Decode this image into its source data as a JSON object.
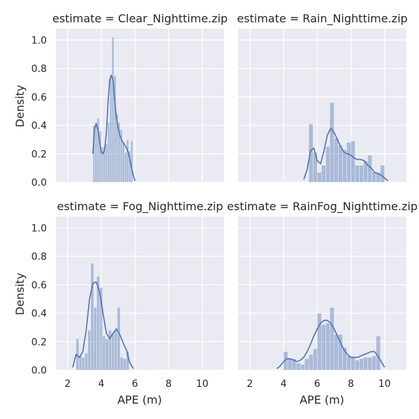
{
  "figure": {
    "x_label": "APE (m)",
    "y_label": "Density"
  },
  "colors": {
    "background": "#eaeaf2",
    "grid": "#ffffff",
    "bar": "#4c72b0",
    "kde": "#4c72b0"
  },
  "chart_data": [
    {
      "type": "histogram",
      "title": "estimate = Clear_Nighttime.zip",
      "xlabel": "",
      "ylabel": "Density",
      "xlim": [
        1.3,
        11.3
      ],
      "ylim": [
        0,
        1.08
      ],
      "xticks": [
        2,
        4,
        6,
        8,
        10
      ],
      "yticks": [
        0.0,
        0.2,
        0.4,
        0.6,
        0.8,
        1.0
      ],
      "bin_width": 0.125,
      "bins": [
        [
          3.5,
          0.4
        ],
        [
          3.625,
          0.42
        ],
        [
          3.75,
          0.45
        ],
        [
          3.875,
          0.36
        ],
        [
          4.0,
          0.25
        ],
        [
          4.125,
          0.25
        ],
        [
          4.25,
          0.27
        ],
        [
          4.375,
          0.42
        ],
        [
          4.5,
          0.75
        ],
        [
          4.625,
          1.02
        ],
        [
          4.75,
          0.75
        ],
        [
          4.875,
          0.48
        ],
        [
          5.0,
          0.42
        ],
        [
          5.125,
          0.37
        ],
        [
          5.25,
          0.28
        ],
        [
          5.375,
          0.21
        ],
        [
          5.5,
          0.3
        ],
        [
          5.625,
          0.22
        ],
        [
          5.75,
          0.29
        ]
      ],
      "kde": [
        [
          3.5,
          0.2
        ],
        [
          3.6,
          0.38
        ],
        [
          3.7,
          0.41
        ],
        [
          3.8,
          0.37
        ],
        [
          3.9,
          0.28
        ],
        [
          4.0,
          0.21
        ],
        [
          4.1,
          0.2
        ],
        [
          4.2,
          0.23
        ],
        [
          4.3,
          0.35
        ],
        [
          4.4,
          0.56
        ],
        [
          4.5,
          0.72
        ],
        [
          4.6,
          0.75
        ],
        [
          4.7,
          0.72
        ],
        [
          4.8,
          0.57
        ],
        [
          4.9,
          0.45
        ],
        [
          5.0,
          0.38
        ],
        [
          5.1,
          0.33
        ],
        [
          5.2,
          0.3
        ],
        [
          5.3,
          0.28
        ],
        [
          5.4,
          0.26
        ],
        [
          5.5,
          0.24
        ],
        [
          5.6,
          0.21
        ],
        [
          5.7,
          0.16
        ],
        [
          5.8,
          0.1
        ],
        [
          5.9,
          0.05
        ],
        [
          6.0,
          0.01
        ]
      ]
    },
    {
      "type": "histogram",
      "title": "estimate = Rain_Nighttime.zip",
      "xlabel": "",
      "ylabel": "",
      "xlim": [
        1.3,
        11.3
      ],
      "ylim": [
        0,
        1.08
      ],
      "xticks": [
        2,
        4,
        6,
        8,
        10
      ],
      "yticks": [
        0.0,
        0.2,
        0.4,
        0.6,
        0.8,
        1.0
      ],
      "bin_width": 0.25,
      "bins": [
        [
          5.5,
          0.41
        ],
        [
          5.75,
          0.21
        ],
        [
          6.0,
          0.07
        ],
        [
          6.25,
          0.12
        ],
        [
          6.5,
          0.25
        ],
        [
          6.75,
          0.56
        ],
        [
          7.0,
          0.31
        ],
        [
          7.25,
          0.26
        ],
        [
          7.5,
          0.23
        ],
        [
          7.75,
          0.28
        ],
        [
          8.0,
          0.29
        ],
        [
          8.25,
          0.12
        ],
        [
          8.5,
          0.12
        ],
        [
          8.75,
          0.15
        ],
        [
          9.0,
          0.19
        ],
        [
          9.25,
          0.07
        ],
        [
          9.5,
          0.07
        ],
        [
          9.75,
          0.12
        ]
      ],
      "kde": [
        [
          5.2,
          0.02
        ],
        [
          5.4,
          0.09
        ],
        [
          5.6,
          0.22
        ],
        [
          5.8,
          0.24
        ],
        [
          6.0,
          0.15
        ],
        [
          6.2,
          0.13
        ],
        [
          6.4,
          0.22
        ],
        [
          6.6,
          0.33
        ],
        [
          6.8,
          0.38
        ],
        [
          7.0,
          0.35
        ],
        [
          7.2,
          0.3
        ],
        [
          7.4,
          0.25
        ],
        [
          7.6,
          0.21
        ],
        [
          7.8,
          0.2
        ],
        [
          8.0,
          0.19
        ],
        [
          8.2,
          0.17
        ],
        [
          8.4,
          0.16
        ],
        [
          8.6,
          0.16
        ],
        [
          8.8,
          0.15
        ],
        [
          9.0,
          0.12
        ],
        [
          9.2,
          0.1
        ],
        [
          9.4,
          0.07
        ],
        [
          9.6,
          0.06
        ],
        [
          9.8,
          0.05
        ],
        [
          10.0,
          0.03
        ],
        [
          10.2,
          0.01
        ]
      ]
    },
    {
      "type": "histogram",
      "title": "estimate = Fog_Nighttime.zip",
      "xlabel": "APE (m)",
      "ylabel": "Density",
      "xlim": [
        1.3,
        11.3
      ],
      "ylim": [
        0,
        1.08
      ],
      "xticks": [
        2,
        4,
        6,
        8,
        10
      ],
      "yticks": [
        0.0,
        0.2,
        0.4,
        0.6,
        0.8,
        1.0
      ],
      "bin_width": 0.175,
      "bins": [
        [
          2.5,
          0.22
        ],
        [
          2.675,
          0.1
        ],
        [
          2.85,
          0.09
        ],
        [
          3.025,
          0.12
        ],
        [
          3.2,
          0.28
        ],
        [
          3.375,
          0.75
        ],
        [
          3.55,
          0.44
        ],
        [
          3.725,
          0.66
        ],
        [
          3.9,
          0.58
        ],
        [
          4.075,
          0.24
        ],
        [
          4.25,
          0.22
        ],
        [
          4.425,
          0.28
        ],
        [
          4.6,
          0.26
        ],
        [
          4.775,
          0.28
        ],
        [
          4.95,
          0.44
        ],
        [
          5.125,
          0.09
        ],
        [
          5.3,
          0.08
        ],
        [
          5.475,
          0.13
        ]
      ],
      "kde": [
        [
          2.3,
          0.02
        ],
        [
          2.5,
          0.11
        ],
        [
          2.7,
          0.09
        ],
        [
          2.9,
          0.13
        ],
        [
          3.1,
          0.28
        ],
        [
          3.3,
          0.5
        ],
        [
          3.5,
          0.61
        ],
        [
          3.7,
          0.62
        ],
        [
          3.9,
          0.55
        ],
        [
          4.1,
          0.4
        ],
        [
          4.3,
          0.26
        ],
        [
          4.5,
          0.22
        ],
        [
          4.7,
          0.26
        ],
        [
          4.9,
          0.29
        ],
        [
          5.1,
          0.25
        ],
        [
          5.3,
          0.19
        ],
        [
          5.5,
          0.14
        ],
        [
          5.7,
          0.05
        ],
        [
          5.9,
          0.01
        ]
      ]
    },
    {
      "type": "histogram",
      "title": "estimate = RainFog_Nighttime.zip",
      "xlabel": "APE (m)",
      "ylabel": "",
      "xlim": [
        1.3,
        11.3
      ],
      "ylim": [
        0,
        1.08
      ],
      "xticks": [
        2,
        4,
        6,
        8,
        10
      ],
      "yticks": [
        0.0,
        0.2,
        0.4,
        0.6,
        0.8,
        1.0
      ],
      "bin_width": 0.25,
      "bins": [
        [
          4.0,
          0.13
        ],
        [
          4.25,
          0.08
        ],
        [
          4.5,
          0.08
        ],
        [
          4.75,
          0.05
        ],
        [
          5.0,
          0.04
        ],
        [
          5.25,
          0.08
        ],
        [
          5.5,
          0.11
        ],
        [
          5.75,
          0.15
        ],
        [
          6.0,
          0.4
        ],
        [
          6.25,
          0.32
        ],
        [
          6.5,
          0.33
        ],
        [
          6.75,
          0.44
        ],
        [
          7.0,
          0.25
        ],
        [
          7.25,
          0.25
        ],
        [
          7.5,
          0.16
        ],
        [
          7.75,
          0.1
        ],
        [
          8.0,
          0.09
        ],
        [
          8.25,
          0.07
        ],
        [
          8.5,
          0.08
        ],
        [
          8.75,
          0.09
        ],
        [
          9.0,
          0.09
        ],
        [
          9.25,
          0.1
        ],
        [
          9.5,
          0.24
        ]
      ],
      "kde": [
        [
          3.6,
          0.01
        ],
        [
          3.8,
          0.03
        ],
        [
          4.0,
          0.06
        ],
        [
          4.2,
          0.08
        ],
        [
          4.4,
          0.08
        ],
        [
          4.6,
          0.07
        ],
        [
          4.8,
          0.06
        ],
        [
          5.0,
          0.07
        ],
        [
          5.2,
          0.09
        ],
        [
          5.4,
          0.13
        ],
        [
          5.6,
          0.18
        ],
        [
          5.8,
          0.24
        ],
        [
          6.0,
          0.29
        ],
        [
          6.2,
          0.33
        ],
        [
          6.4,
          0.35
        ],
        [
          6.6,
          0.35
        ],
        [
          6.8,
          0.33
        ],
        [
          7.0,
          0.29
        ],
        [
          7.2,
          0.24
        ],
        [
          7.4,
          0.19
        ],
        [
          7.6,
          0.14
        ],
        [
          7.8,
          0.11
        ],
        [
          8.0,
          0.09
        ],
        [
          8.2,
          0.09
        ],
        [
          8.4,
          0.09
        ],
        [
          8.6,
          0.1
        ],
        [
          8.8,
          0.11
        ],
        [
          9.0,
          0.12
        ],
        [
          9.2,
          0.13
        ],
        [
          9.4,
          0.13
        ],
        [
          9.6,
          0.1
        ],
        [
          9.8,
          0.06
        ],
        [
          10.0,
          0.02
        ]
      ]
    }
  ]
}
